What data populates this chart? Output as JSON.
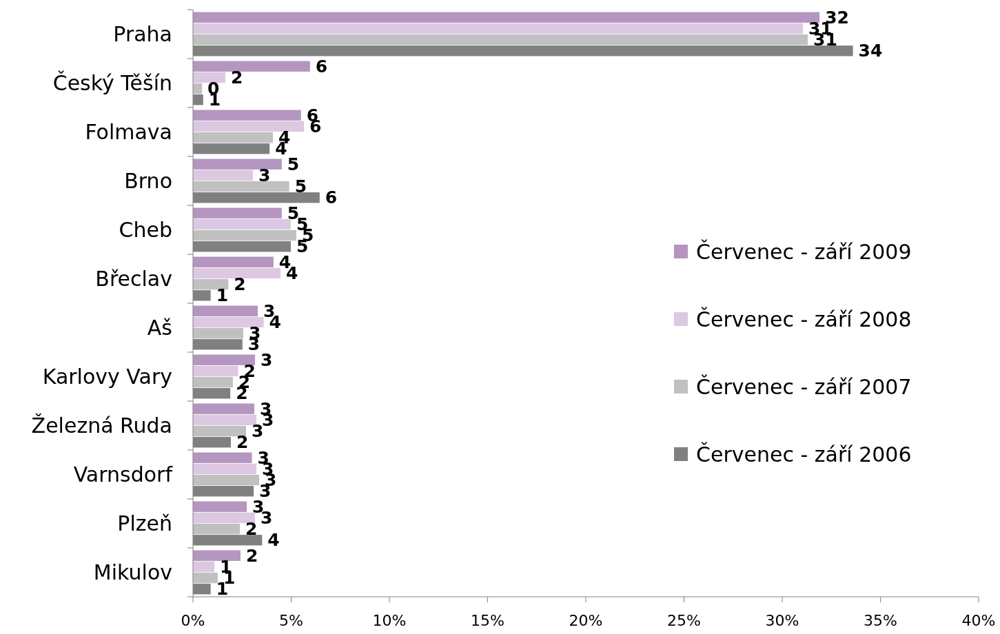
{
  "chart_data": {
    "type": "bar",
    "orientation": "horizontal",
    "categories": [
      "Praha",
      "Český Těšín",
      "Folmava",
      "Brno",
      "Cheb",
      "Břeclav",
      "Aš",
      "Karlovy Vary",
      "Železná Ruda",
      "Varnsdorf",
      "Plzeň",
      "Mikulov"
    ],
    "series": [
      {
        "name": "Červenec - září 2009",
        "color": "#b496c0",
        "values": [
          31.9,
          5.96,
          5.5,
          4.52,
          4.52,
          4.1,
          3.3,
          3.16,
          3.12,
          3.0,
          2.74,
          2.42
        ],
        "value_labels": [
          "32",
          "6",
          "6",
          "5",
          "5",
          "4",
          "3",
          "3",
          "3",
          "3",
          "3",
          "2"
        ]
      },
      {
        "name": "Červenec - září 2008",
        "color": "#dcc8e0",
        "values": [
          31.05,
          1.65,
          5.65,
          3.05,
          4.98,
          4.46,
          3.6,
          2.3,
          3.23,
          3.23,
          3.16,
          1.09
        ],
        "value_labels": [
          "31",
          "2",
          "6",
          "3",
          "5",
          "4",
          "4",
          "2",
          "3",
          "3",
          "3",
          "1"
        ]
      },
      {
        "name": "Červenec - září 2007",
        "color": "#c0c0c0",
        "values": [
          31.3,
          0.46,
          4.07,
          4.9,
          5.26,
          1.8,
          2.56,
          2.03,
          2.7,
          3.37,
          2.39,
          1.26
        ],
        "value_labels": [
          "31",
          "0",
          "4",
          "5",
          "5",
          "2",
          "3",
          "2",
          "3",
          "3",
          "2",
          "1"
        ]
      },
      {
        "name": "Červenec - září 2006",
        "color": "#808080",
        "values": [
          33.6,
          0.52,
          3.9,
          6.45,
          4.98,
          0.9,
          2.52,
          1.9,
          1.93,
          3.09,
          3.52,
          0.9
        ],
        "value_labels": [
          "34",
          "1",
          "4",
          "6",
          "5",
          "1",
          "3",
          "2",
          "2",
          "3",
          "4",
          "1"
        ]
      }
    ],
    "xlim": [
      0,
      40
    ],
    "xticks": [
      {
        "value": 0,
        "label": "0%"
      },
      {
        "value": 5,
        "label": "5%"
      },
      {
        "value": 10,
        "label": "10%"
      },
      {
        "value": 15,
        "label": "15%"
      },
      {
        "value": 20,
        "label": "20%"
      },
      {
        "value": 25,
        "label": "25%"
      },
      {
        "value": 30,
        "label": "30%"
      },
      {
        "value": 35,
        "label": "35%"
      },
      {
        "value": 40,
        "label": "40%"
      }
    ],
    "grid": false,
    "legend": "right"
  }
}
